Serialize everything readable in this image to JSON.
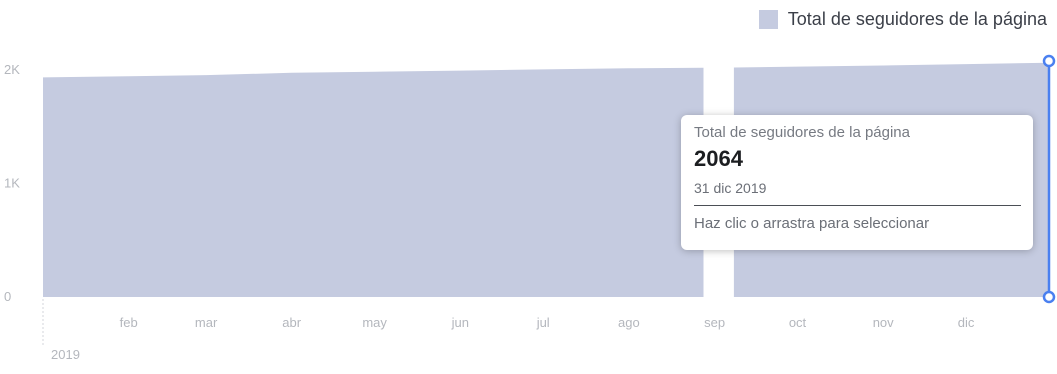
{
  "chart_data": {
    "type": "area",
    "legend": {
      "label": "Total de seguidores de la página",
      "placement": "top-right"
    },
    "series": [
      {
        "name": "Total de seguidores de la página",
        "color": "#c5cbe0",
        "points": [
          {
            "date": "2019-01-01",
            "value": 1935
          },
          {
            "date": "2019-02-01",
            "value": 1945
          },
          {
            "date": "2019-03-01",
            "value": 1955
          },
          {
            "date": "2019-04-01",
            "value": 1975
          },
          {
            "date": "2019-05-01",
            "value": 1985
          },
          {
            "date": "2019-06-01",
            "value": 1995
          },
          {
            "date": "2019-07-01",
            "value": 2005
          },
          {
            "date": "2019-08-01",
            "value": 2015
          },
          {
            "date": "2019-08-28",
            "value": 2020
          },
          {
            "date": "2019-09-08",
            "value": 2022
          },
          {
            "date": "2019-10-01",
            "value": 2030
          },
          {
            "date": "2019-11-01",
            "value": 2040
          },
          {
            "date": "2019-12-01",
            "value": 2052
          },
          {
            "date": "2019-12-31",
            "value": 2064
          }
        ],
        "gap": {
          "from": "2019-08-28",
          "to": "2019-09-08"
        }
      }
    ],
    "x_axis": {
      "range": [
        "2019-01-01",
        "2019-12-31"
      ],
      "ticks": [
        {
          "date": "2019-02-01",
          "label": "feb"
        },
        {
          "date": "2019-03-01",
          "label": "mar"
        },
        {
          "date": "2019-04-01",
          "label": "abr"
        },
        {
          "date": "2019-05-01",
          "label": "may"
        },
        {
          "date": "2019-06-01",
          "label": "jun"
        },
        {
          "date": "2019-07-01",
          "label": "jul"
        },
        {
          "date": "2019-08-01",
          "label": "ago"
        },
        {
          "date": "2019-09-01",
          "label": "sep"
        },
        {
          "date": "2019-10-01",
          "label": "oct"
        },
        {
          "date": "2019-11-01",
          "label": "nov"
        },
        {
          "date": "2019-12-01",
          "label": "dic"
        }
      ],
      "year_label": "2019"
    },
    "y_axis": {
      "range": [
        0,
        2000
      ],
      "ticks": [
        {
          "value": 0,
          "label": "0"
        },
        {
          "value": 1000,
          "label": "1K"
        },
        {
          "value": 2000,
          "label": "2K"
        }
      ]
    },
    "grid": false,
    "selection": {
      "date": "2019-12-31",
      "color": "#4a80f0"
    },
    "tooltip": {
      "series_label": "Total de seguidores de la página",
      "value": "2064",
      "date": "31 dic 2019",
      "hint": "Haz clic o arrastra para seleccionar"
    }
  }
}
